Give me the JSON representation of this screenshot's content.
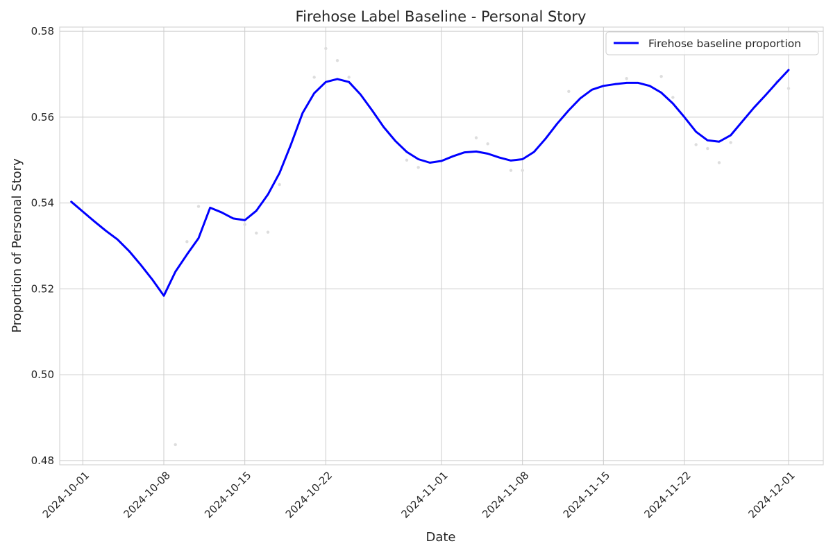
{
  "chart_data": {
    "type": "line",
    "title": "Firehose Label Baseline - Personal Story",
    "xlabel": "Date",
    "ylabel": "Proportion of Personal Story",
    "xlim": [
      "2024-09-29",
      "2024-12-04"
    ],
    "ylim": [
      0.479,
      0.581
    ],
    "x_ticks": [
      "2024-10-01",
      "2024-10-08",
      "2024-10-15",
      "2024-10-22",
      "2024-11-01",
      "2024-11-08",
      "2024-11-15",
      "2024-11-22",
      "2024-12-01"
    ],
    "y_ticks": [
      0.48,
      0.5,
      0.52,
      0.54,
      0.56,
      0.58
    ],
    "y_tick_labels": [
      "0.48",
      "0.50",
      "0.52",
      "0.54",
      "0.56",
      "0.58"
    ],
    "grid": true,
    "legend": {
      "position": "top-right",
      "entries": [
        "Firehose baseline proportion"
      ]
    },
    "series": [
      {
        "name": "Firehose baseline proportion",
        "color": "#0000ff",
        "x": [
          "2024-09-30",
          "2024-10-01",
          "2024-10-02",
          "2024-10-03",
          "2024-10-04",
          "2024-10-05",
          "2024-10-06",
          "2024-10-07",
          "2024-10-08",
          "2024-10-09",
          "2024-10-10",
          "2024-10-11",
          "2024-10-12",
          "2024-10-13",
          "2024-10-14",
          "2024-10-15",
          "2024-10-16",
          "2024-10-17",
          "2024-10-18",
          "2024-10-19",
          "2024-10-20",
          "2024-10-21",
          "2024-10-22",
          "2024-10-23",
          "2024-10-24",
          "2024-10-25",
          "2024-10-26",
          "2024-10-27",
          "2024-10-28",
          "2024-10-29",
          "2024-10-30",
          "2024-10-31",
          "2024-11-01",
          "2024-11-02",
          "2024-11-03",
          "2024-11-04",
          "2024-11-05",
          "2024-11-06",
          "2024-11-07",
          "2024-11-08",
          "2024-11-09",
          "2024-11-10",
          "2024-11-11",
          "2024-11-12",
          "2024-11-13",
          "2024-11-14",
          "2024-11-15",
          "2024-11-16",
          "2024-11-17",
          "2024-11-18",
          "2024-11-19",
          "2024-11-20",
          "2024-11-21",
          "2024-11-22",
          "2024-11-23",
          "2024-11-24",
          "2024-11-25",
          "2024-11-26",
          "2024-11-27",
          "2024-11-28",
          "2024-11-29",
          "2024-11-30",
          "2024-12-01"
        ],
        "values": [
          0.5403,
          0.538,
          0.5357,
          0.5335,
          0.5315,
          0.5288,
          0.5256,
          0.5222,
          0.5184,
          0.524,
          0.528,
          0.5318,
          0.5389,
          0.5378,
          0.5364,
          0.536,
          0.5382,
          0.542,
          0.547,
          0.5537,
          0.561,
          0.5656,
          0.5682,
          0.5689,
          0.5682,
          0.5653,
          0.5616,
          0.5577,
          0.5545,
          0.5519,
          0.5502,
          0.5494,
          0.5498,
          0.5509,
          0.5518,
          0.552,
          0.5515,
          0.5506,
          0.5499,
          0.5502,
          0.5519,
          0.555,
          0.5585,
          0.5616,
          0.5644,
          0.5664,
          0.5673,
          0.5677,
          0.568,
          0.568,
          0.5673,
          0.5657,
          0.5632,
          0.56,
          0.5566,
          0.5546,
          0.5543,
          0.5558,
          0.559,
          0.5622,
          0.5651,
          0.5681,
          0.571
        ]
      }
    ],
    "scatter_points": {
      "color": "#dddddd",
      "x": [
        "2024-10-09",
        "2024-10-10",
        "2024-10-11",
        "2024-10-15",
        "2024-10-16",
        "2024-10-17",
        "2024-10-18",
        "2024-10-21",
        "2024-10-22",
        "2024-10-23",
        "2024-10-24",
        "2024-10-29",
        "2024-10-30",
        "2024-11-04",
        "2024-11-05",
        "2024-11-07",
        "2024-11-08",
        "2024-11-12",
        "2024-11-17",
        "2024-11-20",
        "2024-11-21",
        "2024-11-23",
        "2024-11-24",
        "2024-11-25",
        "2024-11-26",
        "2024-11-30",
        "2024-12-01"
      ],
      "values": [
        0.4837,
        0.531,
        0.5392,
        0.535,
        0.533,
        0.5332,
        0.5443,
        0.5693,
        0.576,
        0.5732,
        0.5693,
        0.55,
        0.5483,
        0.5552,
        0.5538,
        0.5476,
        0.5476,
        0.566,
        0.569,
        0.5695,
        0.5646,
        0.5536,
        0.5527,
        0.5494,
        0.5541,
        0.5683,
        0.5667
      ]
    }
  }
}
